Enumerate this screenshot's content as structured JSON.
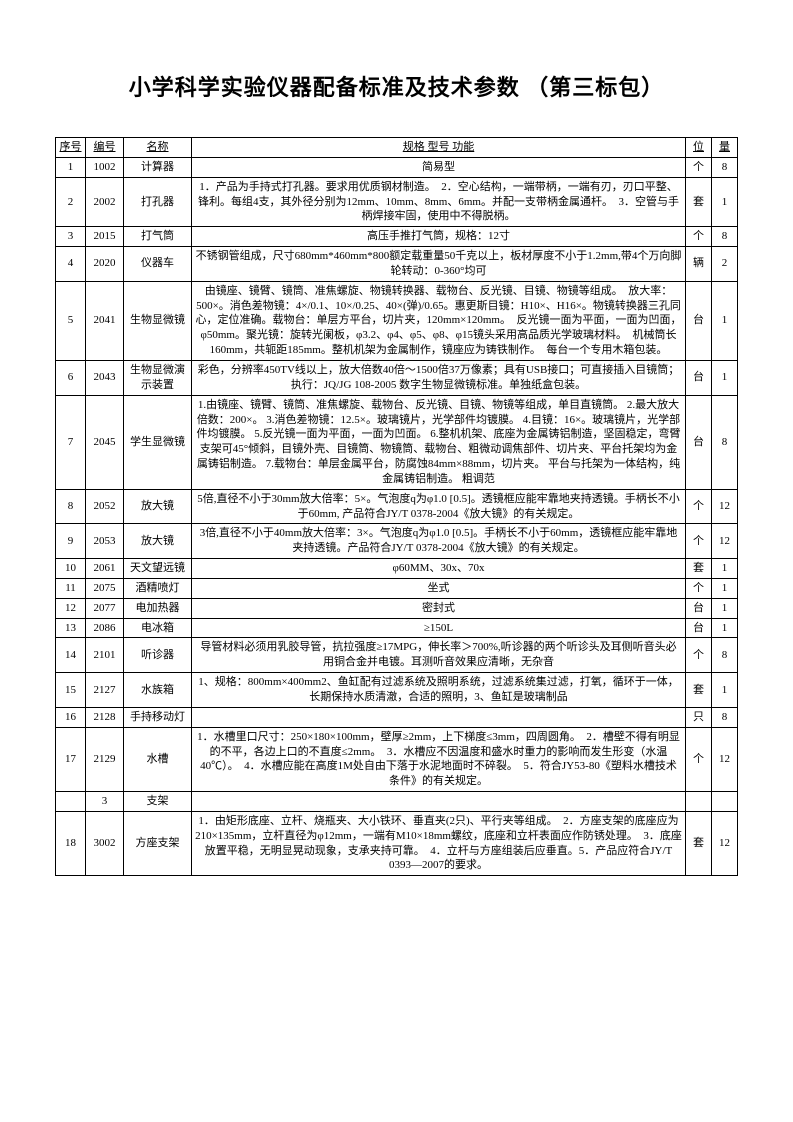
{
  "title": "小学科学实验仪器配备标准及技术参数 （第三标包）",
  "headers": {
    "seq": "序号",
    "code": "编号",
    "name": "名称",
    "spec": "规格 型号 功能",
    "unit": "位",
    "qty": "量"
  },
  "rows": [
    {
      "seq": "1",
      "code": "1002",
      "name": "计算器",
      "spec": "简易型",
      "unit": "个",
      "qty": "8"
    },
    {
      "seq": "2",
      "code": "2002",
      "name": "打孔器",
      "spec": "1．产品为手持式打孔器。要求用优质钢材制造。　2．空心结构，一端带柄，一端有刃，刃口平整、锋利。每组4支，其外径分别为12mm、10mm、8mm、6mm。并配一支带柄金属通杆。　3．空管与手柄焊接牢固，使用中不得脱柄。",
      "unit": "套",
      "qty": "1"
    },
    {
      "seq": "3",
      "code": "2015",
      "name": "打气筒",
      "spec": "高压手推打气筒，规格：12寸",
      "unit": "个",
      "qty": "8"
    },
    {
      "seq": "4",
      "code": "2020",
      "name": "仪器车",
      "spec": "不锈钢管组成，尺寸680mm*460mm*800额定载重量50千克以上，板材厚度不小于1.2mm,带4个万向脚轮转动：0-360°均可",
      "unit": "辆",
      "qty": "2"
    },
    {
      "seq": "5",
      "code": "2041",
      "name": "生物显微镜",
      "spec": "由镜座、镜臂、镜筒、准焦螺旋、物镜转换器、载物台、反光镜、目镜、物镜等组成。　放大率：500×。消色差物镜：4×/0.1、10×/0.25、40×(弹)/0.65。惠更斯目镜：H10×、H16×。物镜转换器三孔同心，定位准确。载物台：单层方平台，切片夹，120mm×120mm。　反光镜一面为平面，一面为凹面，φ50mm。聚光镜：旋转光阑板，φ3.2、φ4、φ5、φ8、φ15镜头采用高品质光学玻璃材料。　机械筒长160mm，共轭距185mm。整机机架为金属制作，镜座应为铸铁制作。　每台一个专用木箱包装。",
      "unit": "台",
      "qty": "1"
    },
    {
      "seq": "6",
      "code": "2043",
      "name": "生物显微演示装置",
      "spec": "彩色，分辨率450TV线以上，放大倍数40倍～1500倍37万像素；具有USB接口；可直接插入目镜筒；执行：JQ/JG 108-2005 数字生物显微镜标准。单独纸盒包装。",
      "unit": "台",
      "qty": "1"
    },
    {
      "seq": "7",
      "code": "2045",
      "name": "学生显微镜",
      "spec": "1.由镜座、镜臂、镜筒、准焦螺旋、载物台、反光镜、目镜、物镜等组成，单目直镜筒。 2.最大放大倍数：200×。 3.消色差物镜：12.5×。玻璃镜片，光学部件均镀膜。 4.目镜：16×。玻璃镜片，光学部件均镀膜。 5.反光镜一面为平面，一面为凹面。 6.整机机架、底座为金属铸铝制造，坚固稳定，弯臂支架可45°倾斜，目镜外壳、目镜筒、物镜筒、载物台、粗微动调焦部件、切片夹、平台托架均为金属铸铝制造。 7.载物台：单层金属平台，防腐蚀84mm×88mm，切片夹。 平台与托架为一体结构，纯金属铸铝制造。 粗调范",
      "unit": "台",
      "qty": "8"
    },
    {
      "seq": "8",
      "code": "2052",
      "name": "放大镜",
      "spec": "5倍,直径不小于30mm放大倍率：5×。气泡度q为φ1.0 [0.5]。透镜框应能牢靠地夹持透镜。手柄长不小于60mm, 产品符合JY/T 0378-2004《放大镜》的有关规定。",
      "unit": "个",
      "qty": "12"
    },
    {
      "seq": "9",
      "code": "2053",
      "name": "放大镜",
      "spec": "3倍,直径不小于40mm放大倍率：3×。气泡度q为φ1.0 [0.5]。手柄长不小于60mm，透镜框应能牢靠地夹持透镜。产品符合JY/T 0378-2004《放大镜》的有关规定。",
      "unit": "个",
      "qty": "12"
    },
    {
      "seq": "10",
      "code": "2061",
      "name": "天文望远镜",
      "spec": "φ60MM、30x、70x",
      "unit": "套",
      "qty": "1"
    },
    {
      "seq": "11",
      "code": "2075",
      "name": "酒精喷灯",
      "spec": "坐式",
      "unit": "个",
      "qty": "1"
    },
    {
      "seq": "12",
      "code": "2077",
      "name": "电加热器",
      "spec": "密封式",
      "unit": "台",
      "qty": "1"
    },
    {
      "seq": "13",
      "code": "2086",
      "name": "电冰箱",
      "spec": "≥150L",
      "unit": "台",
      "qty": "1"
    },
    {
      "seq": "14",
      "code": "2101",
      "name": "听诊器",
      "spec": "导管材料必须用乳胶导管，抗拉强度≥17MPG，伸长率＞700%,听诊器的两个听诊头及耳侧听音头必用铜合金并电镀。耳测听音效果应清晰，无杂音",
      "unit": "个",
      "qty": "8"
    },
    {
      "seq": "15",
      "code": "2127",
      "name": "水族箱",
      "spec": "1、规格：800mm×400mm2、鱼缸配有过滤系统及照明系统，过滤系统集过滤，打氧，循环于一体，长期保持水质清澈，合适的照明，3、鱼缸是玻璃制品",
      "unit": "套",
      "qty": "1"
    },
    {
      "seq": "16",
      "code": "2128",
      "name": "手持移动灯",
      "spec": "",
      "unit": "只",
      "qty": "8"
    },
    {
      "seq": "17",
      "code": "2129",
      "name": "水槽",
      "spec": "1．水槽里口尺寸：250×180×100mm，壁厚≥2mm，上下梯度≤3mm，四周圆角。　2．槽壁不得有明显的不平，各边上口的不直度≤2mm。　3．水槽应不因温度和盛水时重力的影响而发生形变（水温40℃）。　4．水槽应能在高度1M处自由下落于水泥地面时不碎裂。　5．符合JY53-80《塑料水槽技术条件》的有关规定。",
      "unit": "个",
      "qty": "12"
    },
    {
      "seq": "",
      "code": "3",
      "name": "支架",
      "spec": "",
      "unit": "",
      "qty": ""
    },
    {
      "seq": "18",
      "code": "3002",
      "name": "方座支架",
      "spec": "1．由矩形底座、立杆、烧瓶夹、大小铁环、垂直夹(2只)、平行夹等组成。　2．方座支架的底座应为210×135mm，立杆直径为φ12mm，一端有M10×18mm螺纹，底座和立杆表面应作防锈处理。　3．底座放置平稳，无明显晃动现象，支承夹持可靠。　4．立杆与方座组装后应垂直。5．产品应符合JY/T 0393—2007的要求。",
      "unit": "套",
      "qty": "12"
    }
  ]
}
